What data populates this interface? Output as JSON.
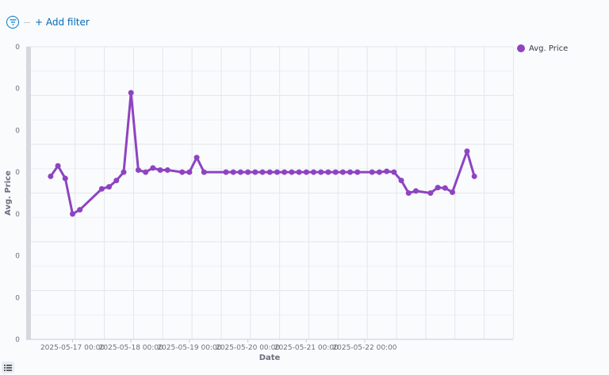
{
  "filter_bar": {
    "add_filter_label": "+ Add filter"
  },
  "chart_data": {
    "type": "line",
    "xlabel": "Date",
    "ylabel": "Avg. Price",
    "x_ticks": [
      "2025-05-17 00:00",
      "2025-05-18 00:00",
      "2025-05-19 00:00",
      "2025-05-20 00:00",
      "2025-05-21 00:00",
      "2025-05-22 00:00"
    ],
    "y_ticks": [
      "0",
      "0",
      "0",
      "0",
      "0",
      "0",
      "0",
      "0"
    ],
    "x_range": [
      -3.35,
      63.3
    ],
    "y_range": [
      0,
      7
    ],
    "grid": true,
    "legend_position": "top-right",
    "series": [
      {
        "name": "Avg. Price",
        "color": "#8e44c1",
        "points": [
          {
            "x": 0.0,
            "y": 3.9
          },
          {
            "x": 1.0,
            "y": 4.15
          },
          {
            "x": 2.0,
            "y": 3.85
          },
          {
            "x": 3.0,
            "y": 3.0
          },
          {
            "x": 4.0,
            "y": 3.1
          },
          {
            "x": 7.0,
            "y": 3.6
          },
          {
            "x": 8.0,
            "y": 3.65
          },
          {
            "x": 9.0,
            "y": 3.8
          },
          {
            "x": 10.0,
            "y": 4.0
          },
          {
            "x": 11.0,
            "y": 5.9
          },
          {
            "x": 12.0,
            "y": 4.05
          },
          {
            "x": 13.0,
            "y": 4.0
          },
          {
            "x": 14.0,
            "y": 4.1
          },
          {
            "x": 15.0,
            "y": 4.05
          },
          {
            "x": 16.0,
            "y": 4.05
          },
          {
            "x": 18.0,
            "y": 4.0
          },
          {
            "x": 19.0,
            "y": 4.0
          },
          {
            "x": 20.0,
            "y": 4.35
          },
          {
            "x": 21.0,
            "y": 4.0
          },
          {
            "x": 24.0,
            "y": 4.0
          },
          {
            "x": 25.0,
            "y": 4.0
          },
          {
            "x": 26.0,
            "y": 4.0
          },
          {
            "x": 27.0,
            "y": 4.0
          },
          {
            "x": 28.0,
            "y": 4.0
          },
          {
            "x": 29.0,
            "y": 4.0
          },
          {
            "x": 30.0,
            "y": 4.0
          },
          {
            "x": 31.0,
            "y": 4.0
          },
          {
            "x": 32.0,
            "y": 4.0
          },
          {
            "x": 33.0,
            "y": 4.0
          },
          {
            "x": 34.0,
            "y": 4.0
          },
          {
            "x": 35.0,
            "y": 4.0
          },
          {
            "x": 36.0,
            "y": 4.0
          },
          {
            "x": 37.0,
            "y": 4.0
          },
          {
            "x": 38.0,
            "y": 4.0
          },
          {
            "x": 39.0,
            "y": 4.0
          },
          {
            "x": 40.0,
            "y": 4.0
          },
          {
            "x": 41.0,
            "y": 4.0
          },
          {
            "x": 42.0,
            "y": 4.0
          },
          {
            "x": 44.0,
            "y": 4.0
          },
          {
            "x": 45.0,
            "y": 4.0
          },
          {
            "x": 46.0,
            "y": 4.02
          },
          {
            "x": 47.0,
            "y": 4.0
          },
          {
            "x": 48.0,
            "y": 3.8
          },
          {
            "x": 49.0,
            "y": 3.5
          },
          {
            "x": 50.0,
            "y": 3.55
          },
          {
            "x": 52.0,
            "y": 3.5
          },
          {
            "x": 53.0,
            "y": 3.63
          },
          {
            "x": 54.0,
            "y": 3.62
          },
          {
            "x": 55.0,
            "y": 3.52
          },
          {
            "x": 57.0,
            "y": 4.5
          },
          {
            "x": 58.0,
            "y": 3.9
          }
        ]
      }
    ]
  }
}
